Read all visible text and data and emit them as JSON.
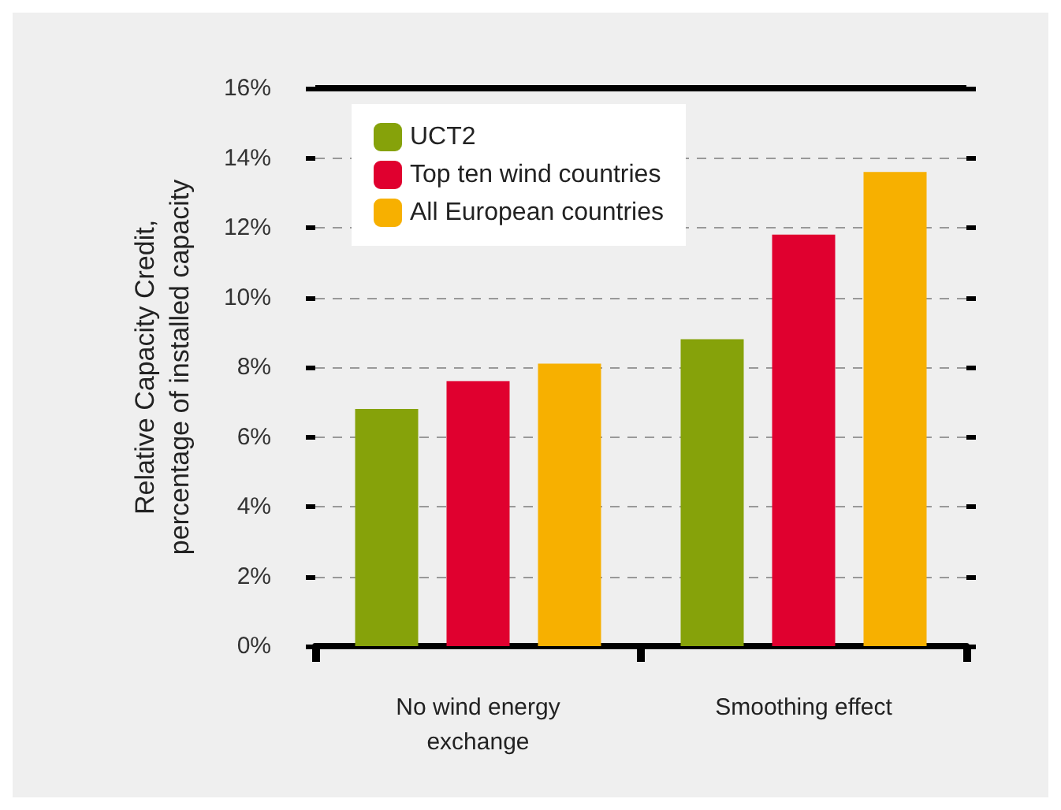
{
  "chart_data": {
    "type": "bar",
    "ylabel": "Relative Capacity Credit,\npercentage of installed capacity",
    "categories": [
      "No wind energy\nexchange",
      "Smoothing effect"
    ],
    "series": [
      {
        "name": "UCT2",
        "color": "#86a20a",
        "values": [
          6.8,
          8.8
        ]
      },
      {
        "name": "Top ten wind countries",
        "color": "#e0002f",
        "values": [
          7.6,
          11.8
        ]
      },
      {
        "name": "All European countries",
        "color": "#f7b000",
        "values": [
          8.1,
          13.6
        ]
      }
    ],
    "ylim": [
      0,
      16
    ],
    "yticks": [
      {
        "value": 0,
        "label": "0%"
      },
      {
        "value": 2,
        "label": "2%"
      },
      {
        "value": 4,
        "label": "4%"
      },
      {
        "value": 6,
        "label": "6%"
      },
      {
        "value": 8,
        "label": "8%"
      },
      {
        "value": 10,
        "label": "10%"
      },
      {
        "value": 12,
        "label": "12%"
      },
      {
        "value": 14,
        "label": "14%"
      },
      {
        "value": 16,
        "label": "16%"
      }
    ],
    "grid": "y",
    "legend": "top left"
  }
}
